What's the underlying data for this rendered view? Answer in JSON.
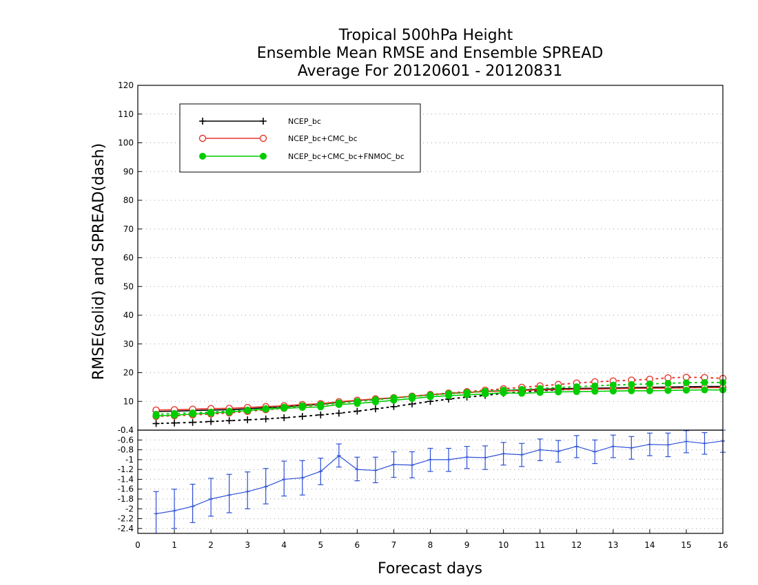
{
  "chart_data": [
    {
      "type": "line",
      "title_lines": [
        "Tropical 500hPa Height",
        "Ensemble Mean RMSE and Ensemble SPREAD",
        "Average For 20120601 - 20120831"
      ],
      "ylabel": "RMSE(solid) and SPREAD(dash)",
      "xlabel": "Forecast days",
      "xlim": [
        0,
        16
      ],
      "ylim": [
        0,
        120
      ],
      "x_ticks": [
        "0",
        "1",
        "2",
        "3",
        "4",
        "5",
        "6",
        "7",
        "8",
        "9",
        "10",
        "11",
        "12",
        "13",
        "14",
        "15",
        "16"
      ],
      "y_ticks": [
        "10",
        "20",
        "30",
        "40",
        "50",
        "60",
        "70",
        "80",
        "90",
        "100",
        "110",
        "120"
      ],
      "grid": "dotted horizontal",
      "legend_position": "top-left",
      "x": [
        0.5,
        1,
        1.5,
        2,
        2.5,
        3,
        3.5,
        4,
        4.5,
        5,
        5.5,
        6,
        6.5,
        7,
        7.5,
        8,
        8.5,
        9,
        9.5,
        10,
        10.5,
        11,
        11.5,
        12,
        12.5,
        13,
        13.5,
        14,
        14.5,
        15,
        15.5,
        16
      ],
      "series": [
        {
          "name": "NCEP_bc",
          "color": "#000000",
          "marker": "plus",
          "rmse": [
            6.5,
            6.6,
            6.8,
            7.0,
            7.1,
            7.4,
            7.8,
            8.1,
            8.6,
            9.0,
            9.7,
            10.3,
            10.8,
            11.2,
            11.8,
            12.3,
            12.8,
            13.1,
            13.5,
            13.7,
            14.0,
            14.2,
            14.4,
            14.5,
            14.6,
            14.7,
            14.8,
            14.9,
            15.0,
            15.1,
            15.2,
            15.2
          ],
          "spread": [
            2.3,
            2.5,
            2.7,
            3.0,
            3.3,
            3.6,
            3.9,
            4.3,
            4.8,
            5.3,
            5.9,
            6.6,
            7.4,
            8.2,
            9.1,
            10.0,
            10.8,
            11.5,
            12.1,
            12.8,
            13.3,
            13.7,
            14.0,
            14.3,
            14.5,
            14.6,
            14.7,
            14.8,
            14.9,
            15.0,
            15.0,
            15.0
          ]
        },
        {
          "name": "NCEP_bc+CMC_bc",
          "color": "#e8332a",
          "marker": "open-circle",
          "rmse": [
            7.0,
            7.1,
            7.3,
            7.5,
            7.6,
            7.9,
            8.2,
            8.5,
            8.9,
            9.2,
            9.9,
            10.4,
            10.9,
            11.3,
            11.8,
            12.3,
            12.8,
            13.1,
            13.4,
            13.6,
            13.8,
            14.0,
            14.1,
            14.2,
            14.3,
            14.4,
            14.5,
            14.6,
            14.6,
            14.7,
            14.8,
            14.8
          ],
          "spread": [
            4.8,
            5.0,
            5.3,
            5.6,
            6.0,
            6.5,
            7.1,
            7.6,
            8.2,
            8.8,
            9.4,
            10.0,
            10.6,
            11.2,
            11.8,
            12.4,
            12.9,
            13.4,
            13.9,
            14.4,
            14.9,
            15.4,
            15.9,
            16.4,
            16.8,
            17.1,
            17.4,
            17.7,
            18.2,
            18.4,
            18.3,
            18.0
          ]
        },
        {
          "name": "NCEP_bc+CMC_bc+FNMOC_bc",
          "color": "#00cc00",
          "marker": "filled-circle",
          "rmse": [
            5.0,
            5.2,
            5.6,
            5.9,
            6.3,
            6.8,
            7.3,
            7.6,
            7.9,
            8.1,
            8.9,
            9.3,
            9.8,
            10.4,
            11.0,
            11.6,
            12.0,
            12.3,
            12.6,
            13.0,
            12.8,
            13.1,
            13.3,
            13.4,
            13.5,
            13.6,
            13.7,
            13.7,
            13.8,
            13.9,
            14.0,
            14.0
          ],
          "spread": [
            5.5,
            5.8,
            6.0,
            6.3,
            6.6,
            7.0,
            7.5,
            8.0,
            8.5,
            8.9,
            9.5,
            10.0,
            10.6,
            11.2,
            11.7,
            12.2,
            12.7,
            13.1,
            13.5,
            13.9,
            14.2,
            14.5,
            14.8,
            15.1,
            15.4,
            15.7,
            15.9,
            16.1,
            16.3,
            16.5,
            16.6,
            16.6
          ]
        }
      ]
    },
    {
      "type": "line",
      "xlim": [
        0,
        16
      ],
      "ylim": [
        -2.5,
        -0.4
      ],
      "y_ticks": [
        "-0.4",
        "-0.6",
        "-0.8",
        "-1",
        "-1.2",
        "-1.4",
        "-1.6",
        "-1.8",
        "-2",
        "-2.2",
        "-2.4"
      ],
      "grid": "dotted horizontal",
      "error_bars": true,
      "color": "#2b4fd6",
      "x": [
        0.5,
        1,
        1.5,
        2,
        2.5,
        3,
        3.5,
        4,
        4.5,
        5,
        5.5,
        6,
        6.5,
        7,
        7.5,
        8,
        8.5,
        9,
        9.5,
        10,
        10.5,
        11,
        11.5,
        12,
        12.5,
        13,
        13.5,
        14,
        14.5,
        15,
        15.5,
        16
      ],
      "values": [
        -2.1,
        -2.04,
        -1.95,
        -1.8,
        -1.72,
        -1.65,
        -1.55,
        -1.4,
        -1.37,
        -1.24,
        -0.92,
        -1.2,
        -1.22,
        -1.1,
        -1.11,
        -1.0,
        -1.0,
        -0.95,
        -0.96,
        -0.88,
        -0.9,
        -0.8,
        -0.83,
        -0.73,
        -0.84,
        -0.73,
        -0.76,
        -0.69,
        -0.7,
        -0.63,
        -0.67,
        -0.62
      ],
      "upper": [
        -1.65,
        -1.6,
        -1.5,
        -1.38,
        -1.3,
        -1.25,
        -1.18,
        -1.03,
        -1.02,
        -0.97,
        -0.68,
        -0.95,
        -0.95,
        -0.84,
        -0.84,
        -0.77,
        -0.77,
        -0.73,
        -0.72,
        -0.65,
        -0.67,
        -0.58,
        -0.61,
        -0.51,
        -0.6,
        -0.5,
        -0.53,
        -0.46,
        -0.46,
        -0.41,
        -0.45,
        -0.4
      ],
      "lower": [
        -2.55,
        -2.4,
        -2.28,
        -2.15,
        -2.08,
        -2.0,
        -1.9,
        -1.74,
        -1.72,
        -1.51,
        -1.15,
        -1.43,
        -1.47,
        -1.36,
        -1.37,
        -1.24,
        -1.24,
        -1.18,
        -1.2,
        -1.11,
        -1.14,
        -1.02,
        -1.05,
        -0.96,
        -1.08,
        -0.96,
        -0.99,
        -0.92,
        -0.94,
        -0.86,
        -0.89,
        -0.85
      ]
    }
  ]
}
